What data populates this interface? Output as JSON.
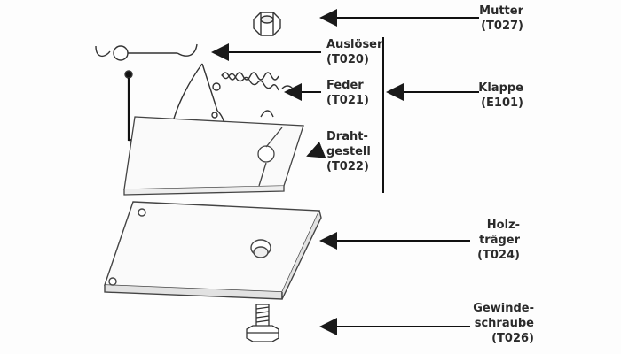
{
  "labels": {
    "mutter": {
      "name": "Mutter",
      "code": "(T027)"
    },
    "ausloeser": {
      "name": "Auslöser",
      "code": "(T020)"
    },
    "feder": {
      "name": "Feder",
      "code": "(T021)"
    },
    "klappe": {
      "name": "Klappe",
      "code": "(E101)"
    },
    "drahtgestell": {
      "line1": "Draht-",
      "line2": "gestell",
      "code": "(T022)"
    },
    "holztraeger": {
      "line1": "Holz-",
      "line2": "träger",
      "code": "(T024)"
    },
    "gewindeschraube": {
      "line1": "Gewinde-",
      "line2": "schraube",
      "code": "(T026)"
    }
  },
  "colors": {
    "ink": "#2a2a2a",
    "line": "#555555",
    "paper": "#fdfdfd"
  },
  "icons": [
    "nut-icon",
    "trigger-wire-icon",
    "spring-icon",
    "wire-frame-icon",
    "wood-board-icon",
    "screw-icon",
    "arrow-icon"
  ]
}
